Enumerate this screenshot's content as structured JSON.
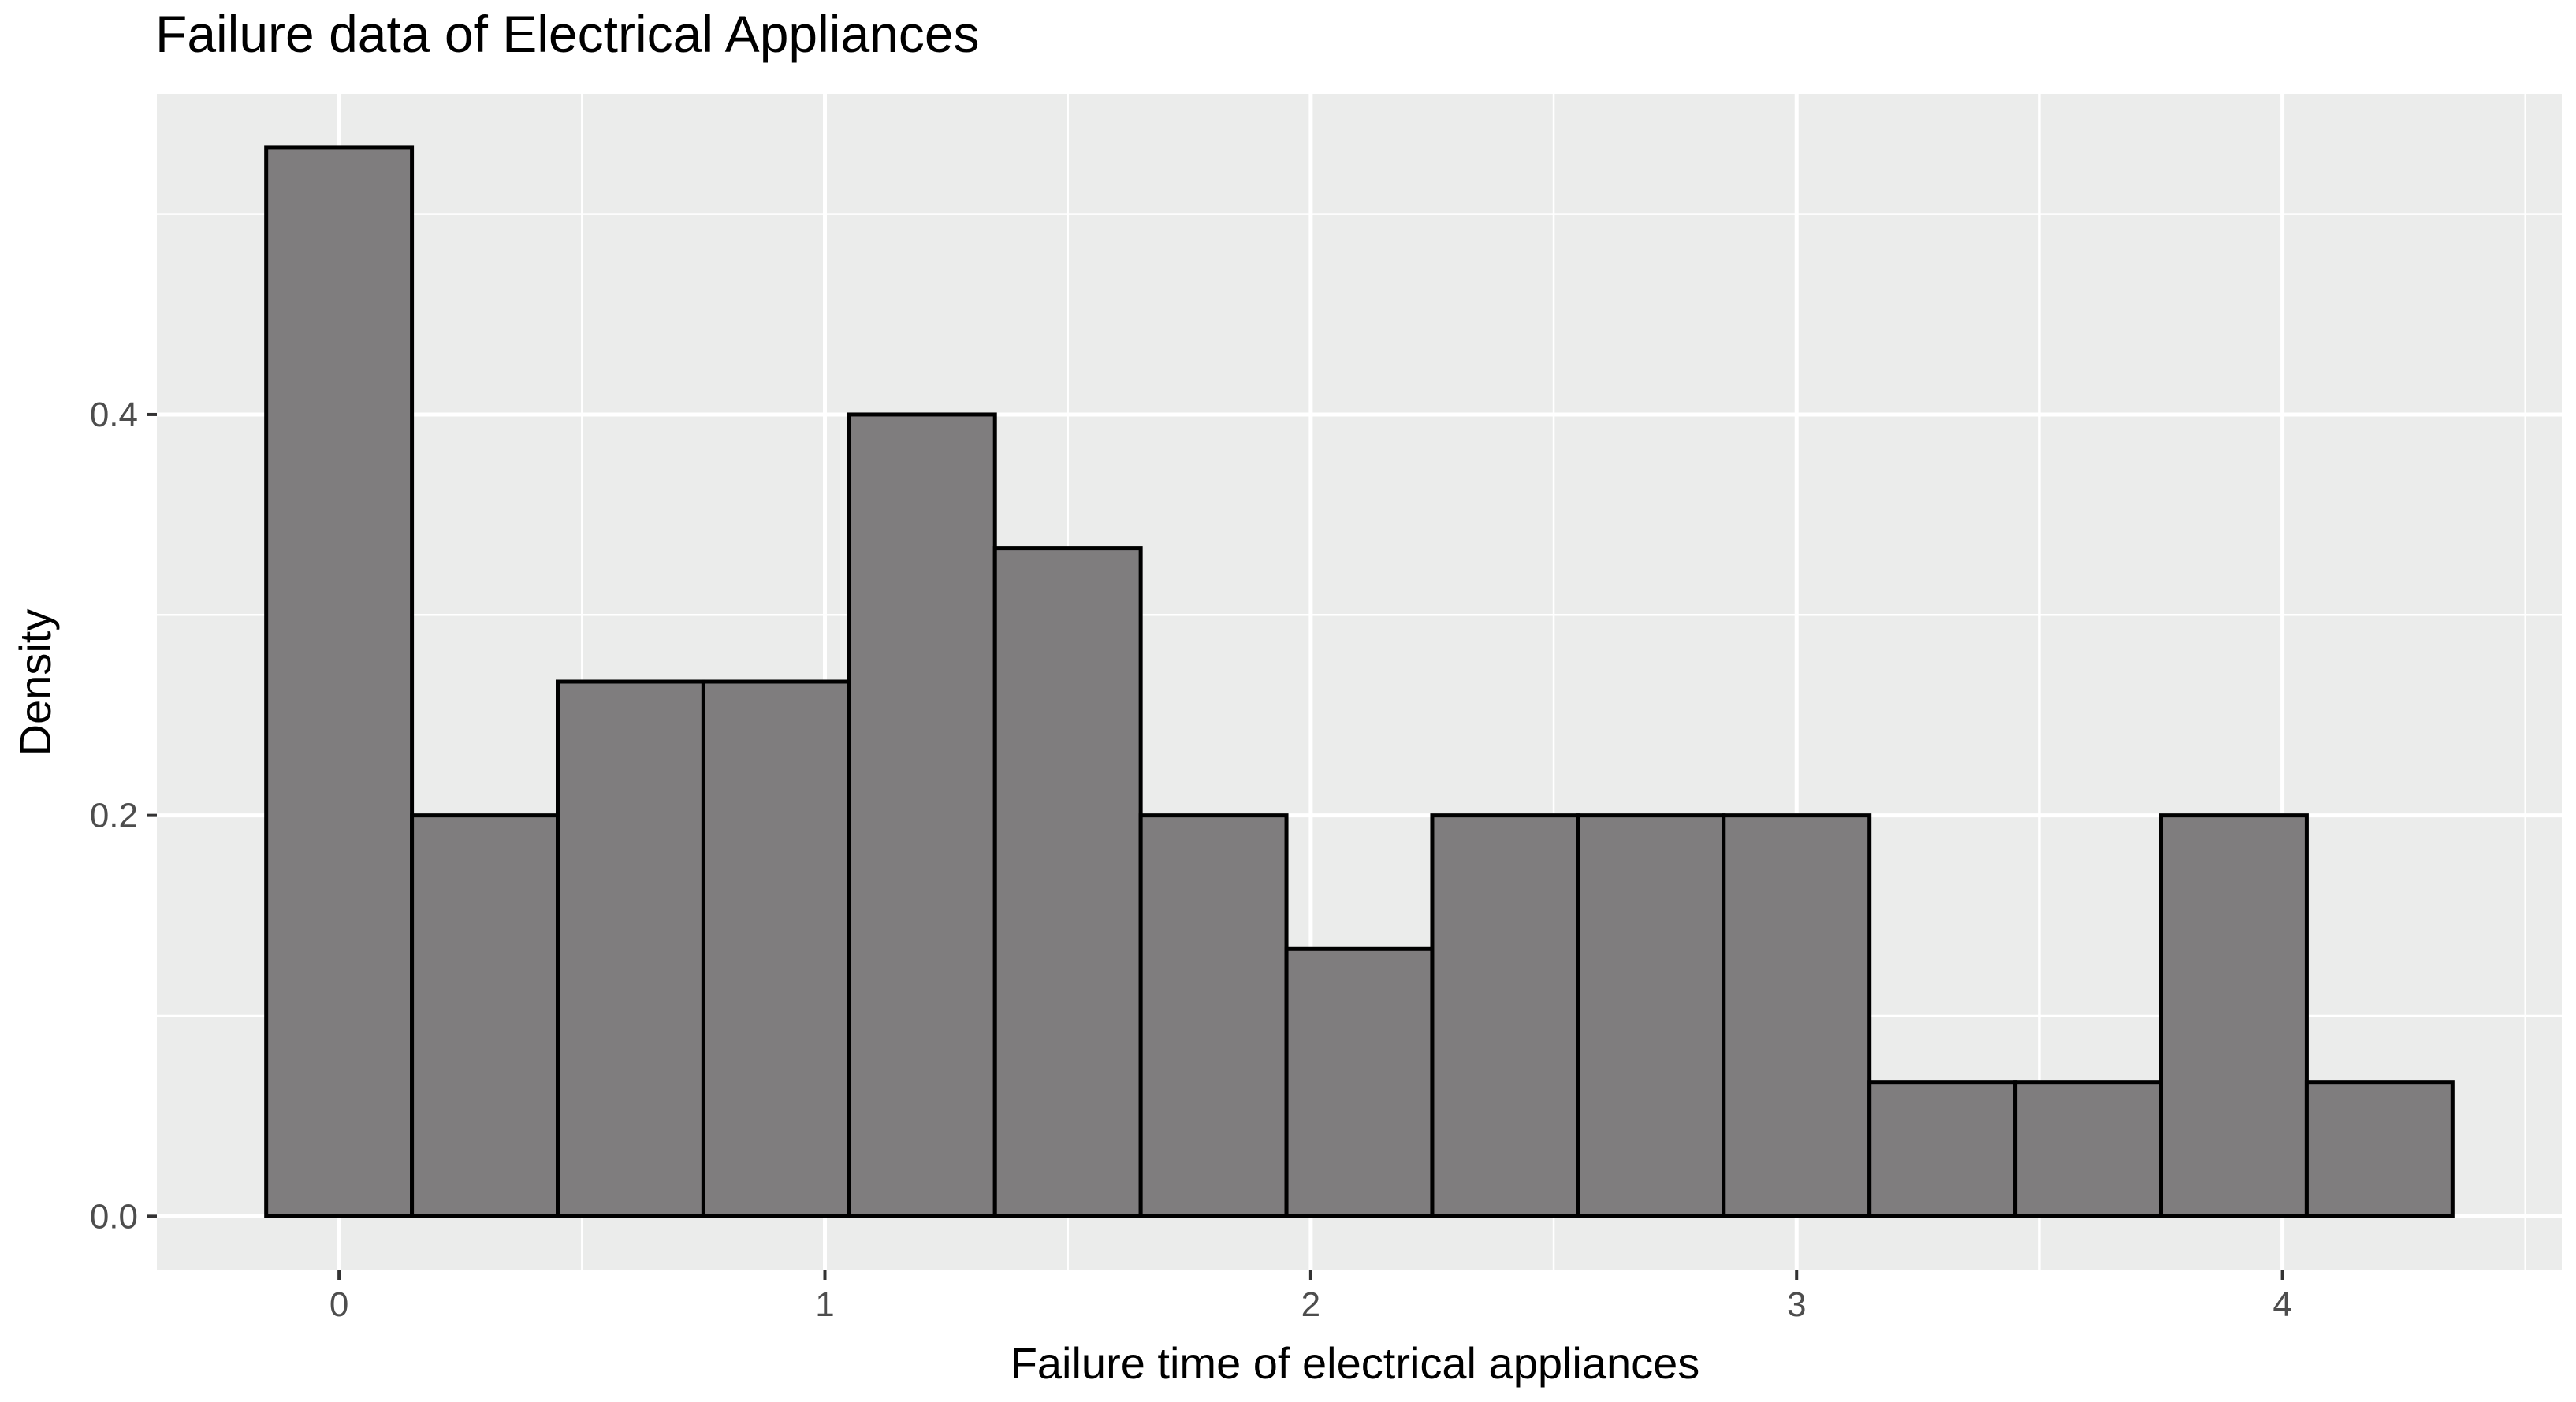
{
  "chart_data": {
    "type": "bar",
    "title": "Failure data of Electrical Appliances",
    "xlabel": "Failure time of electrical appliances",
    "ylabel": "Density",
    "bin_width": 0.3,
    "bins": [
      {
        "start": -0.15,
        "end": 0.15,
        "density": 0.5333
      },
      {
        "start": 0.15,
        "end": 0.45,
        "density": 0.2
      },
      {
        "start": 0.45,
        "end": 0.75,
        "density": 0.2667
      },
      {
        "start": 0.75,
        "end": 1.05,
        "density": 0.2667
      },
      {
        "start": 1.05,
        "end": 1.35,
        "density": 0.4
      },
      {
        "start": 1.35,
        "end": 1.65,
        "density": 0.3333
      },
      {
        "start": 1.65,
        "end": 1.95,
        "density": 0.2
      },
      {
        "start": 1.95,
        "end": 2.25,
        "density": 0.1333
      },
      {
        "start": 2.25,
        "end": 2.55,
        "density": 0.2
      },
      {
        "start": 2.55,
        "end": 2.85,
        "density": 0.2
      },
      {
        "start": 2.85,
        "end": 3.15,
        "density": 0.2
      },
      {
        "start": 3.15,
        "end": 3.45,
        "density": 0.0667
      },
      {
        "start": 3.45,
        "end": 3.75,
        "density": 0.0667
      },
      {
        "start": 3.75,
        "end": 4.05,
        "density": 0.2
      },
      {
        "start": 4.05,
        "end": 4.35,
        "density": 0.0667
      }
    ],
    "xlim": [
      -0.375,
      4.575
    ],
    "ylim": [
      -0.027,
      0.56
    ],
    "x_ticks": [
      0,
      1,
      2,
      3,
      4
    ],
    "x_tick_labels": [
      "0",
      "1",
      "2",
      "3",
      "4"
    ],
    "y_ticks": [
      0.0,
      0.2,
      0.4
    ],
    "y_tick_labels": [
      "0.0",
      "0.2",
      "0.4"
    ],
    "grid": true,
    "legend": "none",
    "colors": {
      "panel_background": "#EBECEB",
      "grid_line": "#FFFFFF",
      "bar_fill": "#7F7D7E",
      "bar_outline": "#000000",
      "tick_text": "#4D4D4D",
      "axis_tick": "#333333"
    }
  }
}
